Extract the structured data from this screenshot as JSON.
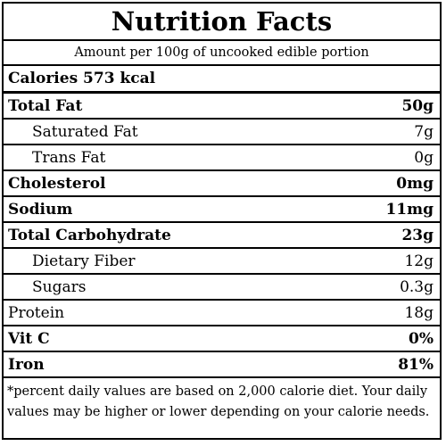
{
  "title": "Nutrition Facts",
  "serving": "Amount per 100g of uncooked edible portion",
  "calories": "Calories 573 kcal",
  "rows": [
    {
      "label": "Total Fat",
      "value": "50g"
    },
    {
      "label": "Saturated Fat",
      "value": "7g"
    },
    {
      "label": "Trans Fat",
      "value": "0g"
    },
    {
      "label": "Cholesterol",
      "value": "0mg"
    },
    {
      "label": "Sodium",
      "value": "11mg"
    },
    {
      "label": "Total Carbohydrate",
      "value": "23g"
    },
    {
      "label": "Dietary Fiber",
      "value": "12g"
    },
    {
      "label": "Sugars",
      "value": "0.3g"
    },
    {
      "label": "Protein",
      "value": "18g"
    },
    {
      "label": "Vit C",
      "value": "0%"
    },
    {
      "label": "Iron",
      "value": "81%"
    }
  ],
  "footnote": "*percent daily values are based on 2,000 calorie diet. Your daily values may be higher or lower depending on your calorie needs."
}
